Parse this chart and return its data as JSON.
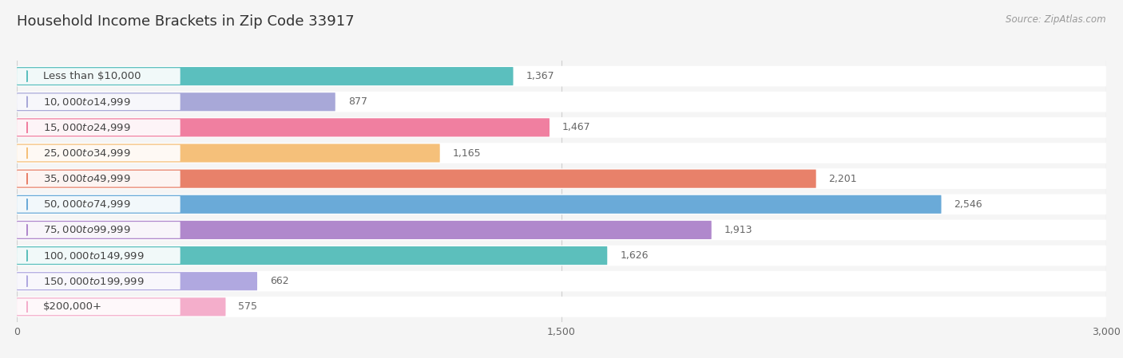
{
  "title": "Household Income Brackets in Zip Code 33917",
  "source": "Source: ZipAtlas.com",
  "categories": [
    "Less than $10,000",
    "$10,000 to $14,999",
    "$15,000 to $24,999",
    "$25,000 to $34,999",
    "$35,000 to $49,999",
    "$50,000 to $74,999",
    "$75,000 to $99,999",
    "$100,000 to $149,999",
    "$150,000 to $199,999",
    "$200,000+"
  ],
  "values": [
    1367,
    877,
    1467,
    1165,
    2201,
    2546,
    1913,
    1626,
    662,
    575
  ],
  "bar_colors": [
    "#5BBFBE",
    "#A8A8D8",
    "#F07FA0",
    "#F5C07A",
    "#E8816A",
    "#6AAAD8",
    "#B088CC",
    "#5CBFBC",
    "#B0A8E0",
    "#F4AECB"
  ],
  "xlim": [
    0,
    3000
  ],
  "xticks": [
    0,
    1500,
    3000
  ],
  "background_color": "#f5f5f5",
  "bar_bg_color": "#ffffff",
  "row_bg_color": "#ececec",
  "title_fontsize": 13,
  "label_fontsize": 9.5,
  "value_fontsize": 9,
  "source_fontsize": 8.5
}
